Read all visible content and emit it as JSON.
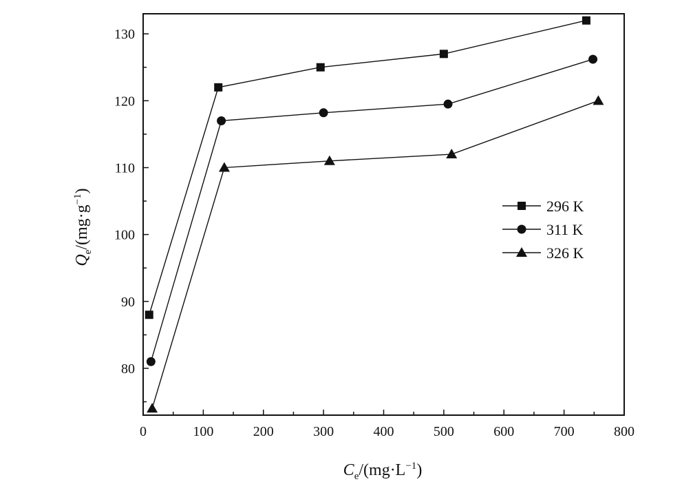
{
  "chart_data": {
    "type": "line",
    "title": "",
    "xlabel": {
      "main": "C",
      "sub": "e",
      "unit": "/(mg·L",
      "sup": "−1",
      "close": ")"
    },
    "ylabel": {
      "main": "Q",
      "sub": "e",
      "unit": "/(mg·g",
      "sup": "−1",
      "close": ")"
    },
    "xlim": [
      0,
      800
    ],
    "ylim": [
      73,
      133
    ],
    "xticks": [
      0,
      100,
      200,
      300,
      400,
      500,
      600,
      700,
      800
    ],
    "yticks": [
      80,
      90,
      100,
      110,
      120,
      130
    ],
    "grid": false,
    "legend_position": "right-middle",
    "series": [
      {
        "name": "296 K",
        "marker": "square",
        "x": [
          10,
          125,
          295,
          500,
          737
        ],
        "y": [
          88,
          122,
          125,
          127,
          132
        ]
      },
      {
        "name": "311 K",
        "marker": "circle",
        "x": [
          13,
          130,
          300,
          507,
          748
        ],
        "y": [
          81,
          117,
          118.2,
          119.5,
          126.2
        ]
      },
      {
        "name": "326 K",
        "marker": "triangle",
        "x": [
          15,
          135,
          310,
          513,
          757
        ],
        "y": [
          74,
          110,
          111,
          112,
          120
        ]
      }
    ]
  }
}
